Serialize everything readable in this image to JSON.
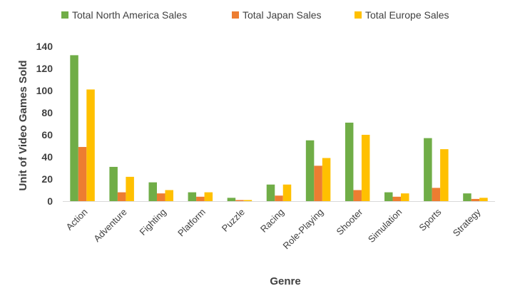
{
  "chart_data": {
    "type": "bar",
    "title": "",
    "xlabel": "Genre",
    "ylabel": "Unit of Video Games Sold",
    "categories": [
      "Action",
      "Adventure",
      "Fighting",
      "Platform",
      "Puzzle",
      "Racing",
      "Role-Playing",
      "Shooter",
      "Simulation",
      "Sports",
      "Strategy"
    ],
    "series": [
      {
        "name": "Total North America Sales",
        "color": "#70ad47",
        "values": [
          132,
          31,
          17,
          8,
          3,
          15,
          55,
          71,
          8,
          57,
          7
        ]
      },
      {
        "name": "Total Japan Sales",
        "color": "#ed7d31",
        "values": [
          49,
          8,
          7,
          4,
          1,
          5,
          32,
          10,
          4,
          12,
          2
        ]
      },
      {
        "name": "Total Europe Sales",
        "color": "#ffc000",
        "values": [
          101,
          22,
          10,
          8,
          1,
          15,
          39,
          60,
          7,
          47,
          3
        ]
      }
    ],
    "ylim": [
      0,
      140
    ],
    "yticks": [
      0,
      20,
      40,
      60,
      80,
      100,
      120,
      140
    ],
    "grid": false,
    "legend_position": "top"
  }
}
